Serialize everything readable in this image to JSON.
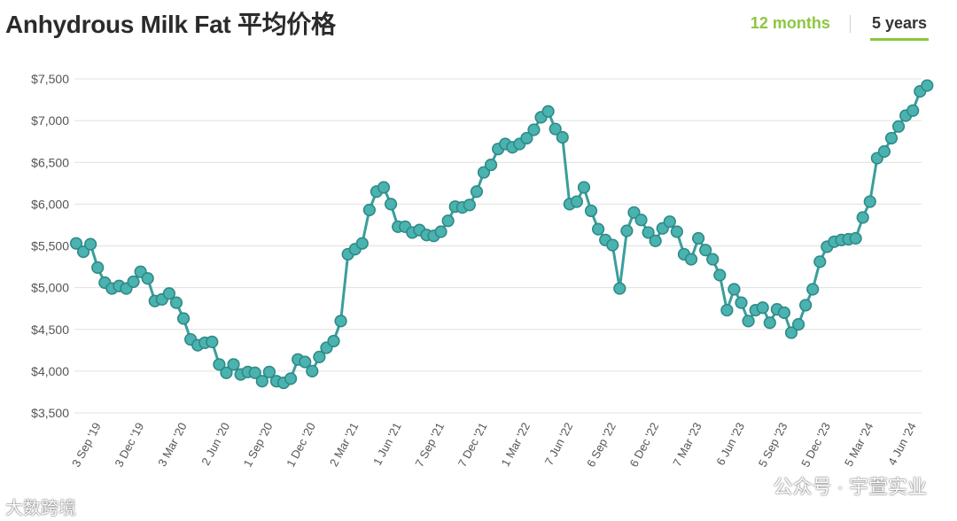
{
  "header": {
    "title": "Anhydrous Milk Fat 平均价格",
    "tabs": [
      {
        "label": "12 months",
        "active": false
      },
      {
        "label": "5 years",
        "active": true
      }
    ]
  },
  "watermarks": {
    "left": "大数跨境",
    "right": "公众号 · 宇萱实业"
  },
  "colors": {
    "line": "#3a9e9c",
    "marker_fill": "#4ab3b0",
    "marker_stroke": "#2f8a87",
    "grid": "#e0e0e0",
    "accent": "#8cc63f"
  },
  "chart_data": {
    "type": "line",
    "title": "",
    "xlabel": "",
    "ylabel": "",
    "ylim": [
      3500,
      7500
    ],
    "yticks": [
      3500,
      4000,
      4500,
      5000,
      5500,
      6000,
      6500,
      7000,
      7500
    ],
    "ytick_labels": [
      "$3,500",
      "$4,000",
      "$4,500",
      "$5,000",
      "$5,500",
      "$6,000",
      "$6,500",
      "$7,000",
      "$7,500"
    ],
    "grid": true,
    "xtick_labels": [
      "3 Sep '19",
      "3 Dec '19",
      "3 Mar '20",
      "2 Jun '20",
      "1 Sep '20",
      "1 Dec '20",
      "2 Mar '21",
      "1 Jun '21",
      "7 Sep '21",
      "7 Dec '21",
      "1 Mar '22",
      "7 Jun '22",
      "6 Sep '22",
      "6 Dec '22",
      "7 Mar '23",
      "6 Jun '23",
      "5 Sep '23",
      "5 Dec '23",
      "5 Mar '24",
      "4 Jun '24"
    ],
    "xtick_index": [
      3,
      9,
      15,
      21,
      27,
      33,
      39,
      45,
      51,
      57,
      63,
      69,
      75,
      81,
      87,
      93,
      99,
      105,
      111,
      117
    ],
    "series": [
      {
        "values": [
          5530,
          5430,
          5520,
          5240,
          5060,
          4990,
          5020,
          4990,
          5070,
          5190,
          5110,
          4840,
          4860,
          4930,
          4820,
          4630,
          4380,
          4310,
          4340,
          4350,
          4080,
          3980,
          4080,
          3960,
          3990,
          3980,
          3880,
          3990,
          3880,
          3860,
          3910,
          4140,
          4110,
          4000,
          4170,
          4280,
          4360,
          4600,
          5400,
          5460,
          5530,
          5930,
          6150,
          6200,
          6000,
          5730,
          5730,
          5660,
          5690,
          5630,
          5620,
          5670,
          5800,
          5970,
          5960,
          5990,
          6150,
          6380,
          6470,
          6660,
          6720,
          6680,
          6720,
          6790,
          6890,
          7040,
          7110,
          6900,
          6800,
          6000,
          6030,
          6200,
          5920,
          5700,
          5570,
          5510,
          4990,
          5680,
          5900,
          5810,
          5660,
          5560,
          5710,
          5790,
          5670,
          5400,
          5340,
          5590,
          5450,
          5340,
          5150,
          4730,
          4980,
          4820,
          4600,
          4730,
          4760,
          4580,
          4740,
          4700,
          4460,
          4560,
          4790,
          4980,
          5310,
          5490,
          5550,
          5570,
          5580,
          5590,
          5840,
          6030,
          6550,
          6630,
          6790,
          6930,
          7060,
          7120,
          7350,
          7420
        ]
      }
    ]
  }
}
